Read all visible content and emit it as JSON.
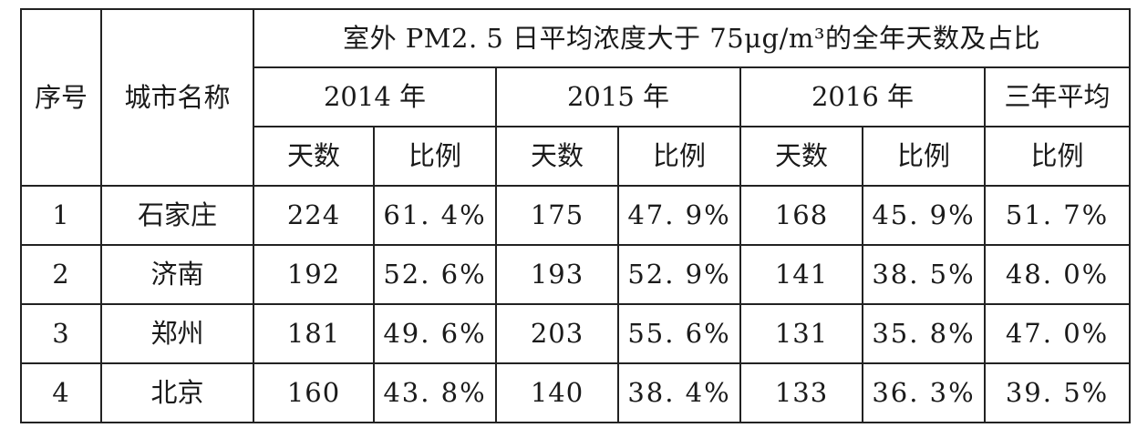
{
  "header": {
    "seq": "序号",
    "city": "城市名称",
    "title": "室外 PM2. 5 日平均浓度大于 75μg/m³的全年天数及占比",
    "years": [
      "2014 年",
      "2015 年",
      "2016 年",
      "三年平均"
    ],
    "sub": [
      "天数",
      "比例",
      "天数",
      "比例",
      "天数",
      "比例",
      "比例"
    ]
  },
  "rows": [
    {
      "seq": "1",
      "city": "石家庄",
      "d2014": "224",
      "p2014": "61. 4%",
      "d2015": "175",
      "p2015": "47. 9%",
      "d2016": "168",
      "p2016": "45. 9%",
      "avg": "51. 7%"
    },
    {
      "seq": "2",
      "city": "济南",
      "d2014": "192",
      "p2014": "52. 6%",
      "d2015": "193",
      "p2015": "52. 9%",
      "d2016": "141",
      "p2016": "38. 5%",
      "avg": "48. 0%"
    },
    {
      "seq": "3",
      "city": "郑州",
      "d2014": "181",
      "p2014": "49. 6%",
      "d2015": "203",
      "p2015": "55. 6%",
      "d2016": "131",
      "p2016": "35. 8%",
      "avg": "47. 0%"
    },
    {
      "seq": "4",
      "city": "北京",
      "d2014": "160",
      "p2014": "43. 8%",
      "d2015": "140",
      "p2015": "38. 4%",
      "d2016": "133",
      "p2016": "36. 3%",
      "avg": "39. 5%"
    }
  ]
}
